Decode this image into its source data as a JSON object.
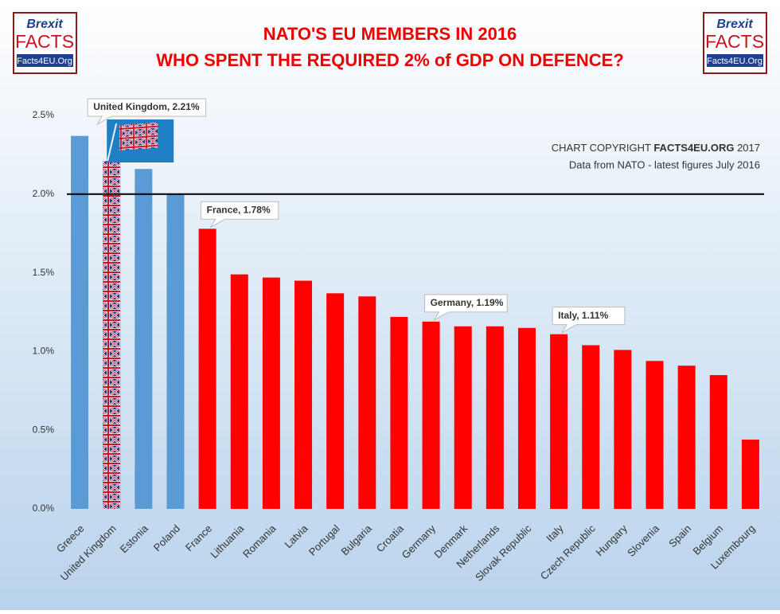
{
  "logo": {
    "brand": "Brexit",
    "name": "FACTS",
    "site": "Facts4EU.Org"
  },
  "chart_data": {
    "type": "bar",
    "title": [
      "NATO'S EU MEMBERS IN 2016",
      "WHO SPENT THE REQUIRED 2% of GDP ON DEFENCE?"
    ],
    "copyright": [
      "CHART COPYRIGHT ",
      "FACTS4EU.ORG",
      " 2017"
    ],
    "source": "Data from NATO - latest figures July 2016",
    "categories": [
      "Greece",
      "United Kingdom",
      "Estonia",
      "Poland",
      "France",
      "Lithuania",
      "Romania",
      "Latvia",
      "Portugal",
      "Bulgaria",
      "Croatia",
      "Germany",
      "Denmark",
      "Netherlands",
      "Slovak Republic",
      "Italy",
      "Czech Republic",
      "Hungary",
      "Slovenia",
      "Spain",
      "Belgium",
      "Luxembourg"
    ],
    "values": [
      2.37,
      2.21,
      2.16,
      2.0,
      1.78,
      1.49,
      1.47,
      1.45,
      1.37,
      1.35,
      1.22,
      1.19,
      1.16,
      1.16,
      1.15,
      1.11,
      1.04,
      1.01,
      0.94,
      0.91,
      0.85,
      0.44
    ],
    "value_labels": [
      null,
      "United Kingdom, 2.21%",
      null,
      null,
      "France, 1.78%",
      null,
      null,
      null,
      null,
      null,
      null,
      "Germany, 1.19%",
      null,
      null,
      null,
      "Italy, 1.11%",
      null,
      null,
      null,
      null,
      null,
      null
    ],
    "colors": [
      "#5b9bd5",
      "url(#uk-flag)",
      "#5b9bd5",
      "#5b9bd5",
      "#ff0000",
      "#ff0000",
      "#ff0000",
      "#ff0000",
      "#ff0000",
      "#ff0000",
      "#ff0000",
      "#ff0000",
      "#ff0000",
      "#ff0000",
      "#ff0000",
      "#ff0000",
      "#ff0000",
      "#ff0000",
      "#ff0000",
      "#ff0000",
      "#ff0000",
      "#ff0000"
    ],
    "reference_line": 2.0,
    "ylim": [
      0,
      2.5
    ],
    "yticks": [
      {
        "value": 0,
        "label": "0.0%"
      },
      {
        "value": 0.5,
        "label": "0.5%"
      },
      {
        "value": 1.0,
        "label": "1.0%"
      },
      {
        "value": 1.5,
        "label": "1.5%"
      },
      {
        "value": 2.0,
        "label": "2.0%"
      },
      {
        "value": 2.5,
        "label": "2.5%"
      }
    ]
  }
}
